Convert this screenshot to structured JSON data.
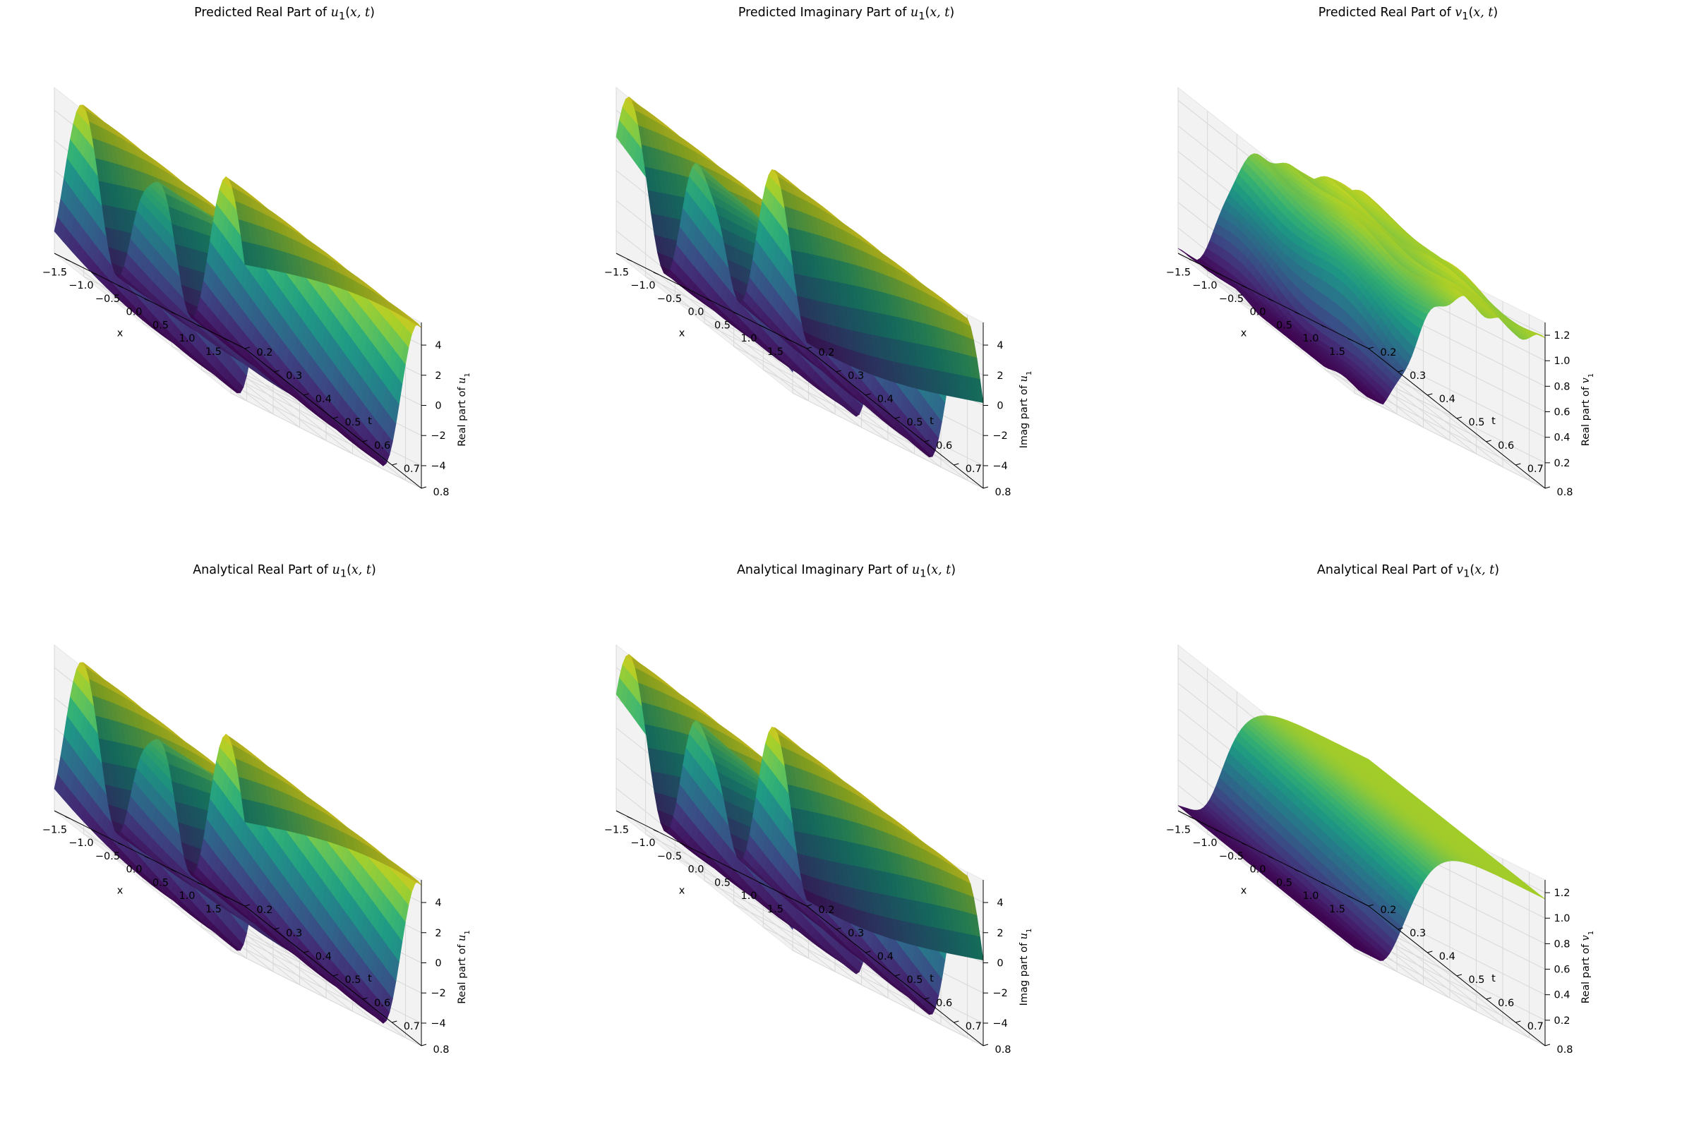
{
  "chart_data": [
    {
      "type": "surface",
      "title": "Predicted Real Part of u1(x, t)",
      "title_prefix": "Predicted Real Part of",
      "func": "u",
      "sub": "1",
      "xlabel": "x",
      "ylabel": "t",
      "zlabel": "Real part of u1",
      "zlabel_prefix": "Real part of",
      "zlabel_var": "u",
      "xlim": [
        -1.8,
        1.8
      ],
      "ylim": [
        0.2,
        0.8
      ],
      "zlim": [
        -5.5,
        5.5
      ],
      "xticks": [
        "−1.5",
        "−1.0",
        "−0.5",
        "0.0",
        "0.5",
        "1.0",
        "1.5"
      ],
      "yticks": [
        "0.2",
        "0.3",
        "0.4",
        "0.5",
        "0.6",
        "0.7",
        "0.8"
      ],
      "zticks": [
        "−4",
        "−2",
        "0",
        "2",
        "4"
      ],
      "colormap": "viridis",
      "surface": "sawtooth-wave",
      "phase": 0.0,
      "noise": 0.0
    },
    {
      "type": "surface",
      "title": "Predicted Imaginary Part of u1(x, t)",
      "title_prefix": "Predicted Imaginary Part of",
      "func": "u",
      "sub": "1",
      "xlabel": "x",
      "ylabel": "t",
      "zlabel": "Imag part of u1",
      "zlabel_prefix": "Imag part of",
      "zlabel_var": "u",
      "xlim": [
        -1.8,
        1.8
      ],
      "ylim": [
        0.2,
        0.8
      ],
      "zlim": [
        -5.5,
        5.5
      ],
      "xticks": [
        "−1.5",
        "−1.0",
        "−0.5",
        "0.0",
        "0.5",
        "1.0",
        "1.5"
      ],
      "yticks": [
        "0.2",
        "0.3",
        "0.4",
        "0.5",
        "0.6",
        "0.7",
        "0.8"
      ],
      "zticks": [
        "−4",
        "−2",
        "0",
        "2",
        "4"
      ],
      "colormap": "viridis",
      "surface": "sawtooth-wave",
      "phase": 1.3,
      "noise": 0.0
    },
    {
      "type": "surface",
      "title": "Predicted Real Part of v1(x, t)",
      "title_prefix": "Predicted Real Part of",
      "func": "v",
      "sub": "1",
      "xlabel": "x",
      "ylabel": "t",
      "zlabel": "Real part of v1",
      "zlabel_prefix": "Real part of",
      "zlabel_var": "v",
      "xlim": [
        -1.8,
        1.8
      ],
      "ylim": [
        0.2,
        0.8
      ],
      "zlim": [
        0.0,
        1.3
      ],
      "xticks": [
        "−1.5",
        "−1.0",
        "−0.5",
        "0.0",
        "0.5",
        "1.0",
        "1.5"
      ],
      "yticks": [
        "0.2",
        "0.3",
        "0.4",
        "0.5",
        "0.6",
        "0.7",
        "0.8"
      ],
      "zticks": [
        "0.2",
        "0.4",
        "0.6",
        "0.8",
        "1.0",
        "1.2"
      ],
      "colormap": "viridis",
      "surface": "rising-plateau",
      "phase": 0.0,
      "noise": 1.0
    },
    {
      "type": "surface",
      "title": "Analytical Real Part of u1(x, t)",
      "title_prefix": "Analytical Real Part of",
      "func": "u",
      "sub": "1",
      "xlabel": "x",
      "ylabel": "t",
      "zlabel": "Real part of u1",
      "zlabel_prefix": "Real part of",
      "zlabel_var": "u",
      "xlim": [
        -1.8,
        1.8
      ],
      "ylim": [
        0.2,
        0.8
      ],
      "zlim": [
        -5.5,
        5.5
      ],
      "xticks": [
        "−1.5",
        "−1.0",
        "−0.5",
        "0.0",
        "0.5",
        "1.0",
        "1.5"
      ],
      "yticks": [
        "0.2",
        "0.3",
        "0.4",
        "0.5",
        "0.6",
        "0.7",
        "0.8"
      ],
      "zticks": [
        "−4",
        "−2",
        "0",
        "2",
        "4"
      ],
      "colormap": "viridis",
      "surface": "sawtooth-wave",
      "phase": 0.0,
      "noise": 0.0
    },
    {
      "type": "surface",
      "title": "Analytical Imaginary Part of u1(x, t)",
      "title_prefix": "Analytical Imaginary Part of",
      "func": "u",
      "sub": "1",
      "xlabel": "x",
      "ylabel": "t",
      "zlabel": "Imag part of u1",
      "zlabel_prefix": "Imag part of",
      "zlabel_var": "u",
      "xlim": [
        -1.8,
        1.8
      ],
      "ylim": [
        0.2,
        0.8
      ],
      "zlim": [
        -5.5,
        5.5
      ],
      "xticks": [
        "−1.5",
        "−1.0",
        "−0.5",
        "0.0",
        "0.5",
        "1.0",
        "1.5"
      ],
      "yticks": [
        "0.2",
        "0.3",
        "0.4",
        "0.5",
        "0.6",
        "0.7",
        "0.8"
      ],
      "zticks": [
        "−4",
        "−2",
        "0",
        "2",
        "4"
      ],
      "colormap": "viridis",
      "surface": "sawtooth-wave",
      "phase": 1.3,
      "noise": 0.0
    },
    {
      "type": "surface",
      "title": "Analytical Real Part of v1(x, t)",
      "title_prefix": "Analytical Real Part of",
      "func": "v",
      "sub": "1",
      "xlabel": "x",
      "ylabel": "t",
      "zlabel": "Real part of v1",
      "zlabel_prefix": "Real part of",
      "zlabel_var": "v",
      "xlim": [
        -1.8,
        1.8
      ],
      "ylim": [
        0.2,
        0.8
      ],
      "zlim": [
        0.0,
        1.3
      ],
      "xticks": [
        "−1.5",
        "−1.0",
        "−0.5",
        "0.0",
        "0.5",
        "1.0",
        "1.5"
      ],
      "yticks": [
        "0.2",
        "0.3",
        "0.4",
        "0.5",
        "0.6",
        "0.7",
        "0.8"
      ],
      "zticks": [
        "0.2",
        "0.4",
        "0.6",
        "0.8",
        "1.0",
        "1.2"
      ],
      "colormap": "viridis",
      "surface": "rising-plateau",
      "phase": 0.0,
      "noise": 0.0
    }
  ]
}
